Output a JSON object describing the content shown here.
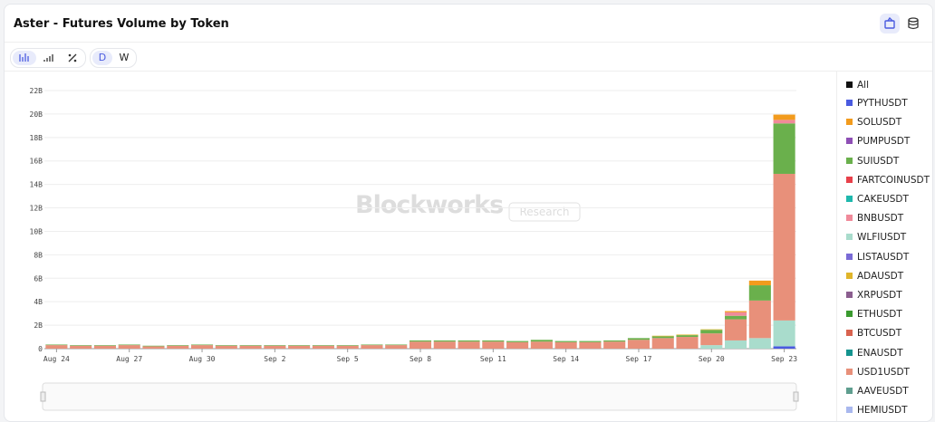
{
  "ui": {
    "title": "Aster - Futures Volume by Token",
    "period_day": "D",
    "period_week": "W",
    "legend_all": "All",
    "watermark": "Blockworks",
    "watermark_tag": "Research"
  },
  "chart_data": {
    "type": "stacked_bar",
    "categories": [
      "Aug 24",
      null,
      null,
      "Aug 27",
      null,
      null,
      "Aug 30",
      null,
      null,
      "Sep 2",
      null,
      null,
      "Sep 5",
      null,
      null,
      "Sep 8",
      null,
      null,
      "Sep 11",
      null,
      null,
      "Sep 14",
      null,
      null,
      "Sep 17",
      null,
      null,
      "Sep 20",
      null,
      null,
      "Sep 23"
    ],
    "ylim": [
      0,
      22
    ],
    "yticks": [
      0,
      {
        "value": 2,
        "label": "2B"
      },
      {
        "value": 4,
        "label": "4B"
      },
      {
        "value": 6,
        "label": "6B"
      },
      {
        "value": 8,
        "label": "8B"
      },
      {
        "value": 10,
        "label": "10B"
      },
      {
        "value": 12,
        "label": "12B"
      },
      {
        "value": 14,
        "label": "14B"
      },
      {
        "value": 16,
        "label": "16B"
      },
      {
        "value": 18,
        "label": "18B"
      },
      {
        "value": 20,
        "label": "20B"
      },
      {
        "value": 22,
        "label": "22B"
      }
    ],
    "grid": true,
    "series": [
      {
        "name": "PYTHUSDT",
        "color": "#4a5be0",
        "values": [
          0,
          0,
          0,
          0,
          0,
          0,
          0,
          0,
          0,
          0,
          0,
          0,
          0,
          0,
          0,
          0,
          0,
          0,
          0,
          0,
          0,
          0,
          0,
          0,
          0,
          0,
          0,
          0,
          0,
          0,
          0.2
        ]
      },
      {
        "name": "SOLUSDT",
        "color": "#f29b1d",
        "values": [
          0,
          0,
          0,
          0,
          0,
          0,
          0,
          0,
          0,
          0,
          0,
          0,
          0,
          0,
          0,
          0,
          0,
          0,
          0,
          0,
          0,
          0,
          0,
          0,
          0,
          0,
          0,
          0,
          0.1,
          0.4,
          0.45
        ]
      },
      {
        "name": "PUMPUSDT",
        "color": "#8e4fb5",
        "values": [
          0,
          0,
          0,
          0,
          0,
          0,
          0,
          0,
          0,
          0,
          0,
          0,
          0,
          0,
          0,
          0,
          0,
          0,
          0,
          0,
          0,
          0,
          0,
          0,
          0,
          0,
          0,
          0,
          0,
          0,
          0
        ]
      },
      {
        "name": "SUIUSDT",
        "color": "#6ab04c",
        "values": [
          0.05,
          0.05,
          0.05,
          0.05,
          0.05,
          0.05,
          0.05,
          0.05,
          0.05,
          0.05,
          0.05,
          0.05,
          0.05,
          0.05,
          0.05,
          0.1,
          0.1,
          0.1,
          0.1,
          0.1,
          0.15,
          0.1,
          0.1,
          0.1,
          0.15,
          0.15,
          0.15,
          0.3,
          0.3,
          1.3,
          4.3
        ]
      },
      {
        "name": "FARTCOINUSDT",
        "color": "#e8404a",
        "values": [
          0,
          0,
          0,
          0,
          0,
          0,
          0,
          0,
          0,
          0,
          0,
          0,
          0,
          0,
          0,
          0,
          0,
          0,
          0,
          0,
          0,
          0,
          0,
          0,
          0,
          0,
          0,
          0,
          0,
          0,
          0
        ]
      },
      {
        "name": "CAKEUSDT",
        "color": "#1fb8ad",
        "values": [
          0,
          0,
          0,
          0,
          0,
          0,
          0,
          0,
          0,
          0,
          0,
          0,
          0,
          0,
          0,
          0,
          0,
          0,
          0,
          0,
          0,
          0,
          0,
          0,
          0,
          0,
          0,
          0,
          0,
          0,
          0
        ]
      },
      {
        "name": "BNBUSDT",
        "color": "#f08a9a",
        "values": [
          0,
          0,
          0,
          0,
          0,
          0,
          0,
          0,
          0,
          0,
          0,
          0,
          0,
          0,
          0,
          0,
          0,
          0,
          0,
          0,
          0,
          0,
          0,
          0,
          0,
          0,
          0,
          0,
          0.3,
          0,
          0.3
        ]
      },
      {
        "name": "WLFIUSDT",
        "color": "#a9dccc",
        "values": [
          0,
          0,
          0,
          0,
          0,
          0,
          0,
          0,
          0,
          0,
          0,
          0,
          0,
          0,
          0,
          0,
          0,
          0,
          0,
          0,
          0,
          0,
          0,
          0,
          0,
          0,
          0,
          0.3,
          0.7,
          0.9,
          2.2
        ]
      },
      {
        "name": "LISTAUSDT",
        "color": "#7a6bd6",
        "values": [
          0,
          0,
          0,
          0,
          0,
          0,
          0,
          0,
          0,
          0,
          0,
          0,
          0,
          0,
          0,
          0,
          0,
          0,
          0,
          0,
          0,
          0,
          0,
          0,
          0,
          0,
          0,
          0,
          0,
          0,
          0
        ]
      },
      {
        "name": "ADAUSDT",
        "color": "#e0b52a",
        "values": [
          0,
          0,
          0,
          0,
          0,
          0,
          0,
          0,
          0,
          0,
          0,
          0,
          0,
          0,
          0,
          0,
          0,
          0,
          0,
          0,
          0,
          0,
          0,
          0,
          0,
          0.05,
          0.05,
          0.05,
          0,
          0,
          0
        ]
      },
      {
        "name": "XRPUSDT",
        "color": "#8b5e8f",
        "values": [
          0,
          0,
          0,
          0,
          0,
          0,
          0,
          0,
          0,
          0,
          0,
          0,
          0,
          0,
          0,
          0,
          0,
          0,
          0,
          0,
          0,
          0,
          0,
          0,
          0,
          0,
          0,
          0,
          0,
          0,
          0
        ]
      },
      {
        "name": "ETHUSDT",
        "color": "#3a9a2f",
        "values": [
          0,
          0,
          0,
          0,
          0,
          0,
          0,
          0,
          0,
          0,
          0,
          0,
          0,
          0,
          0,
          0,
          0,
          0,
          0,
          0,
          0,
          0,
          0,
          0,
          0,
          0,
          0,
          0,
          0,
          0,
          0
        ]
      },
      {
        "name": "BTCUSDT",
        "color": "#d9634f",
        "values": [
          0,
          0,
          0,
          0,
          0,
          0,
          0,
          0,
          0,
          0,
          0,
          0,
          0,
          0,
          0,
          0,
          0,
          0,
          0,
          0,
          0,
          0,
          0,
          0,
          0,
          0,
          0,
          0,
          0,
          0,
          0
        ]
      },
      {
        "name": "ENAUSDT",
        "color": "#14948f",
        "values": [
          0,
          0,
          0,
          0,
          0,
          0,
          0,
          0,
          0,
          0,
          0,
          0,
          0,
          0,
          0,
          0,
          0,
          0,
          0,
          0,
          0,
          0,
          0,
          0,
          0,
          0,
          0,
          0,
          0,
          0,
          0
        ]
      },
      {
        "name": "USD1USDT",
        "color": "#e8907a",
        "values": [
          0.3,
          0.25,
          0.25,
          0.3,
          0.2,
          0.25,
          0.3,
          0.25,
          0.25,
          0.25,
          0.25,
          0.25,
          0.25,
          0.3,
          0.3,
          0.6,
          0.6,
          0.6,
          0.6,
          0.55,
          0.6,
          0.55,
          0.55,
          0.6,
          0.75,
          0.9,
          1.0,
          1.0,
          1.8,
          3.2,
          12.5
        ]
      },
      {
        "name": "AAVEUSDT",
        "color": "#5f9e8f",
        "values": [
          0,
          0,
          0,
          0,
          0,
          0,
          0,
          0,
          0,
          0,
          0,
          0,
          0,
          0,
          0,
          0,
          0,
          0,
          0,
          0,
          0,
          0,
          0,
          0,
          0,
          0,
          0,
          0,
          0,
          0,
          0
        ]
      },
      {
        "name": "HEMIUSDT",
        "color": "#a9b8ee",
        "values": [
          0,
          0,
          0,
          0,
          0,
          0,
          0,
          0,
          0,
          0,
          0,
          0,
          0,
          0,
          0,
          0,
          0,
          0,
          0,
          0,
          0,
          0,
          0,
          0,
          0,
          0,
          0,
          0,
          0,
          0,
          0
        ]
      }
    ]
  }
}
